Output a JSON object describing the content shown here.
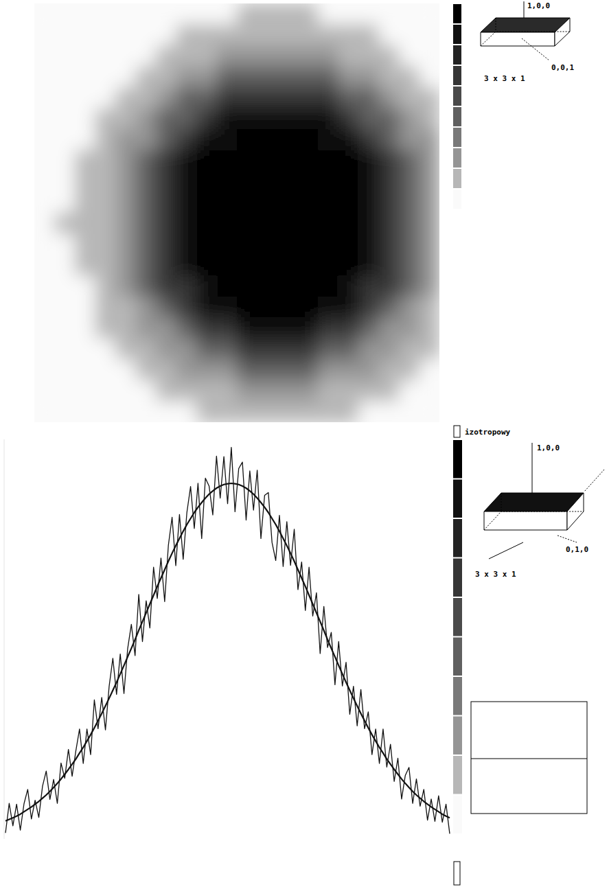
{
  "chart_data": [
    {
      "type": "heatmap",
      "cells": [
        [
          0,
          0,
          0,
          0,
          0,
          0,
          0,
          0,
          0,
          0,
          1,
          1,
          1,
          1,
          0,
          0,
          0,
          0,
          0,
          0
        ],
        [
          0,
          0,
          0,
          0,
          0,
          0,
          0,
          1,
          1,
          1,
          1,
          1,
          1,
          1,
          1,
          1,
          1,
          0,
          0,
          0
        ],
        [
          0,
          0,
          0,
          0,
          0,
          0,
          1,
          1,
          1,
          2,
          2,
          2,
          2,
          2,
          2,
          1,
          1,
          1,
          0,
          0
        ],
        [
          0,
          0,
          0,
          0,
          0,
          1,
          1,
          2,
          2,
          4,
          4,
          4,
          4,
          4,
          4,
          2,
          2,
          1,
          1,
          0
        ],
        [
          0,
          0,
          0,
          0,
          1,
          1,
          2,
          4,
          4,
          6,
          6,
          6,
          6,
          6,
          6,
          4,
          4,
          2,
          1,
          1
        ],
        [
          0,
          0,
          0,
          1,
          1,
          2,
          4,
          4,
          6,
          8,
          8,
          8,
          8,
          8,
          8,
          6,
          4,
          4,
          2,
          1
        ],
        [
          0,
          0,
          0,
          1,
          2,
          2,
          4,
          6,
          8,
          8,
          9,
          9,
          9,
          9,
          8,
          8,
          6,
          4,
          2,
          2
        ],
        [
          0,
          0,
          1,
          1,
          2,
          4,
          6,
          8,
          9,
          9,
          9,
          9,
          9,
          9,
          9,
          9,
          8,
          6,
          4,
          2
        ],
        [
          0,
          0,
          1,
          1,
          2,
          4,
          6,
          8,
          9,
          9,
          9,
          9,
          9,
          9,
          9,
          9,
          8,
          6,
          4,
          2
        ],
        [
          0,
          0,
          1,
          1,
          2,
          4,
          6,
          8,
          9,
          9,
          9,
          9,
          9,
          9,
          9,
          9,
          8,
          6,
          4,
          2
        ],
        [
          0,
          1,
          1,
          1,
          2,
          4,
          6,
          8,
          9,
          9,
          9,
          9,
          9,
          9,
          9,
          9,
          8,
          6,
          4,
          2
        ],
        [
          0,
          0,
          1,
          1,
          2,
          4,
          6,
          8,
          9,
          9,
          9,
          9,
          9,
          9,
          9,
          9,
          8,
          6,
          4,
          2
        ],
        [
          0,
          0,
          1,
          1,
          2,
          4,
          6,
          8,
          9,
          9,
          9,
          9,
          9,
          9,
          9,
          9,
          8,
          6,
          4,
          2
        ],
        [
          0,
          0,
          0,
          1,
          2,
          4,
          6,
          6,
          8,
          9,
          9,
          9,
          9,
          9,
          9,
          8,
          6,
          6,
          4,
          2
        ],
        [
          0,
          0,
          0,
          1,
          1,
          2,
          4,
          6,
          8,
          8,
          9,
          9,
          9,
          9,
          8,
          8,
          6,
          4,
          2,
          1
        ],
        [
          0,
          0,
          0,
          1,
          1,
          2,
          2,
          4,
          6,
          6,
          8,
          8,
          8,
          8,
          6,
          6,
          4,
          2,
          2,
          1
        ],
        [
          0,
          0,
          0,
          0,
          1,
          1,
          2,
          2,
          4,
          4,
          6,
          6,
          6,
          6,
          4,
          4,
          2,
          2,
          1,
          1
        ],
        [
          0,
          0,
          0,
          0,
          0,
          1,
          1,
          2,
          2,
          2,
          4,
          4,
          4,
          4,
          2,
          2,
          2,
          1,
          1,
          0
        ],
        [
          0,
          0,
          0,
          0,
          0,
          0,
          1,
          1,
          1,
          1,
          2,
          2,
          2,
          2,
          1,
          1,
          1,
          1,
          0,
          0
        ],
        [
          0,
          0,
          0,
          0,
          0,
          0,
          0,
          0,
          1,
          1,
          1,
          1,
          1,
          1,
          1,
          1,
          0,
          0,
          0,
          0
        ]
      ],
      "colorbar_range": [
        0,
        9
      ],
      "annotations": [
        "1,0,0",
        "0,0,1",
        "3 x 3 x 1",
        "izotropowy"
      ],
      "tick_labels": false
    },
    {
      "type": "line",
      "series": [
        {
          "values": [
            1.5,
            8.9,
            3.3,
            8.7,
            2.2,
            8.8,
            12.4,
            5.0,
            9.7,
            5.4,
            13.2,
            17.0,
            9.9,
            14.9,
            8.9,
            19.0,
            15.2,
            22.4,
            15.7,
            22.0,
            27.5,
            18.9,
            27.5,
            21.1,
            34.8,
            27.6,
            35.4,
            27.3,
            38.2,
            45.2,
            36.2,
            46.3,
            36.4,
            47.6,
            53.7,
            45.9,
            61.2,
            49.4,
            59.6,
            52.8,
            68.0,
            60.2,
            70.3,
            59.4,
            73.5,
            80.5,
            68.4,
            81.2,
            70.0,
            81.7,
            88.2,
            77.7,
            89.0,
            75.2,
            90.3,
            88.3,
            81.1,
            95.8,
            85.3,
            95.7,
            83.9,
            98.0,
            81.9,
            92.7,
            94.3,
            79.8,
            92.1,
            82.3,
            92.3,
            75.2,
            86.0,
            86.7,
            74.2,
            69.7,
            81.0,
            68.2,
            79.4,
            68.5,
            77.5,
            62.4,
            69.3,
            57.2,
            68.0,
            55.8,
            61.6,
            46.4,
            58.2,
            47.9,
            51.7,
            38.6,
            49.4,
            38.3,
            44.2,
            31.2,
            38.2,
            28.3,
            37.4,
            27.6,
            31.8,
            21.1,
            27.5,
            18.9,
            27.5,
            18.0,
            23.7,
            14.4,
            20.2,
            10.0,
            15.9,
            17.9,
            8.9,
            15.0,
            8.2,
            12.4,
            4.7,
            10.0,
            4.4,
            10.8,
            4.2,
            8.7,
            1.3
          ],
          "line_style": "solid"
        },
        {
          "values": [
            4.5,
            4.9,
            5.3,
            5.7,
            6.2,
            6.8,
            7.4,
            8.0,
            8.7,
            9.4,
            10.2,
            11.0,
            11.9,
            12.9,
            13.9,
            15.0,
            16.2,
            17.4,
            18.7,
            20.0,
            21.5,
            22.9,
            24.5,
            26.1,
            27.8,
            29.6,
            31.4,
            33.3,
            35.2,
            37.2,
            39.2,
            41.3,
            43.4,
            45.6,
            47.7,
            49.9,
            52.2,
            54.4,
            56.6,
            58.8,
            61.0,
            63.2,
            65.3,
            67.4,
            69.5,
            71.5,
            73.4,
            75.2,
            77.0,
            78.7,
            80.2,
            81.7,
            83.0,
            84.2,
            85.3,
            86.3,
            87.1,
            87.8,
            88.3,
            88.7,
            88.9,
            89.0,
            88.9,
            88.7,
            88.3,
            87.8,
            87.1,
            86.3,
            85.3,
            84.2,
            83.0,
            81.7,
            80.2,
            78.7,
            77.0,
            75.2,
            73.4,
            71.5,
            69.5,
            67.4,
            65.3,
            63.2,
            61.0,
            58.8,
            56.6,
            54.4,
            52.2,
            49.9,
            47.7,
            45.6,
            43.4,
            41.3,
            39.2,
            37.2,
            35.2,
            33.3,
            31.4,
            29.6,
            27.8,
            26.1,
            24.5,
            22.9,
            21.5,
            20.0,
            18.7,
            17.4,
            16.2,
            15.0,
            13.9,
            12.9,
            11.9,
            11.0,
            10.2,
            9.4,
            8.7,
            8.0,
            7.4,
            6.8,
            6.2,
            5.7,
            5.3
          ],
          "line_style": "solid"
        }
      ],
      "ylim": [
        0,
        100
      ],
      "colorbar_range": [
        0,
        9
      ],
      "annotations": [
        "1,0,0",
        "0,1,0",
        "3 x 3 x 1"
      ],
      "tick_labels": false
    }
  ]
}
